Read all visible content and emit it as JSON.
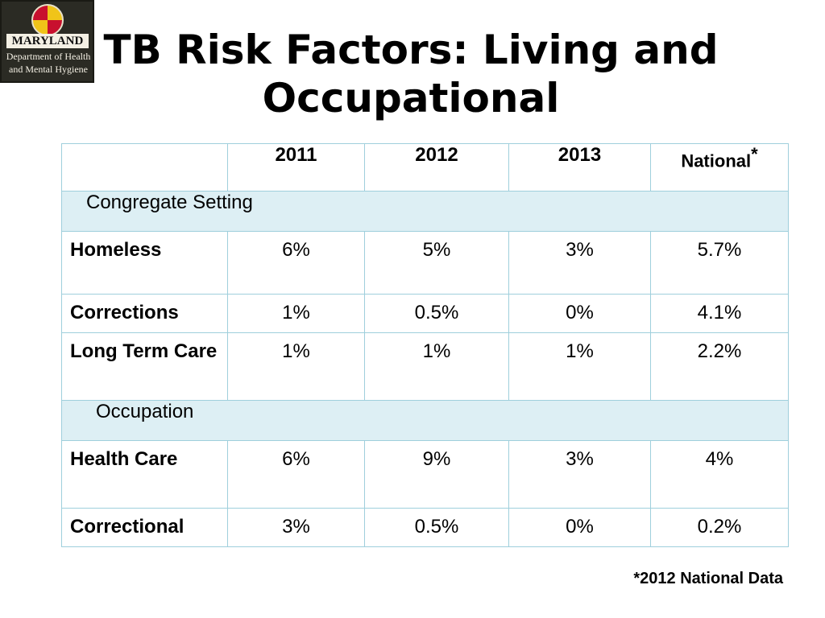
{
  "logo": {
    "line1": "MARYLAND",
    "line2": "Department of Health",
    "line3": "and Mental Hygiene"
  },
  "title": {
    "line1": "TB Risk Factors: Living and",
    "line2": "Occupational"
  },
  "table": {
    "headers": [
      "",
      "2011",
      "2012",
      "2013",
      "National"
    ],
    "national_marker": "*",
    "sections": [
      {
        "label": "Congregate Setting",
        "rows": [
          {
            "label": "Homeless",
            "values": [
              "6%",
              "5%",
              "3%",
              "5.7%"
            ]
          },
          {
            "label": "Corrections",
            "values": [
              "1%",
              "0.5%",
              "0%",
              "4.1%"
            ]
          },
          {
            "label": "Long Term Care",
            "values": [
              "1%",
              "1%",
              "1%",
              "2.2%"
            ]
          }
        ]
      },
      {
        "label": "Occupation",
        "rows": [
          {
            "label": "Health Care",
            "values": [
              "6%",
              "9%",
              "3%",
              "4%"
            ]
          },
          {
            "label": "Correctional",
            "values": [
              "3%",
              "0.5%",
              "0%",
              "0.2%"
            ]
          }
        ]
      }
    ]
  },
  "footnote": "*2012 National Data",
  "colors": {
    "border": "#9fcfdc",
    "section_fill": "#ddeff4"
  }
}
